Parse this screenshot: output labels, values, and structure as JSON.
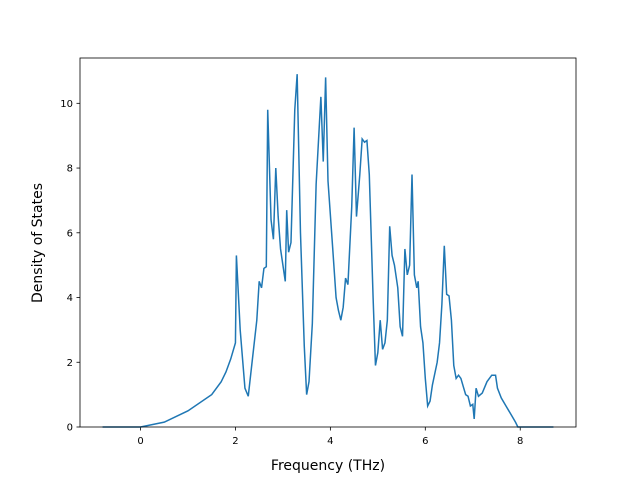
{
  "chart_data": {
    "type": "line",
    "xlabel": "Frequency (THz)",
    "ylabel": "Density of States",
    "x": [
      -0.8,
      0,
      0.5,
      1.0,
      1.5,
      1.7,
      1.8,
      1.9,
      2.0,
      2.02,
      2.1,
      2.15,
      2.2,
      2.27,
      2.35,
      2.45,
      2.5,
      2.55,
      2.6,
      2.65,
      2.68,
      2.75,
      2.8,
      2.85,
      2.9,
      2.95,
      3.05,
      3.08,
      3.12,
      3.17,
      3.25,
      3.3,
      3.37,
      3.45,
      3.5,
      3.55,
      3.62,
      3.7,
      3.8,
      3.85,
      3.9,
      3.95,
      4.05,
      4.12,
      4.17,
      4.22,
      4.27,
      4.32,
      4.37,
      4.45,
      4.5,
      4.55,
      4.62,
      4.67,
      4.72,
      4.77,
      4.82,
      4.9,
      4.95,
      5.0,
      5.05,
      5.1,
      5.15,
      5.2,
      5.25,
      5.3,
      5.35,
      5.42,
      5.47,
      5.52,
      5.57,
      5.62,
      5.67,
      5.72,
      5.77,
      5.82,
      5.85,
      5.9,
      5.95,
      6.0,
      6.05,
      6.1,
      6.15,
      6.25,
      6.3,
      6.35,
      6.4,
      6.45,
      6.5,
      6.55,
      6.6,
      6.65,
      6.7,
      6.75,
      6.8,
      6.85,
      6.9,
      6.95,
      7.0,
      7.03,
      7.07,
      7.12,
      7.2,
      7.3,
      7.4,
      7.48,
      7.52,
      7.6,
      7.7,
      7.8,
      7.9,
      7.95,
      8.7
    ],
    "values": [
      0,
      0,
      0.15,
      0.5,
      1.0,
      1.4,
      1.7,
      2.1,
      2.6,
      5.3,
      3.0,
      2.1,
      1.2,
      0.95,
      2.0,
      3.3,
      4.5,
      4.3,
      4.9,
      4.95,
      9.8,
      6.4,
      5.8,
      8.0,
      6.5,
      5.5,
      4.5,
      6.7,
      5.4,
      5.7,
      9.8,
      10.9,
      6.0,
      2.5,
      1.0,
      1.4,
      3.2,
      7.5,
      10.2,
      8.2,
      10.8,
      7.6,
      5.5,
      4.0,
      3.6,
      3.3,
      3.7,
      4.6,
      4.4,
      6.8,
      9.25,
      6.5,
      7.8,
      8.9,
      8.8,
      8.85,
      7.8,
      4.0,
      1.9,
      2.3,
      3.3,
      2.4,
      2.6,
      3.3,
      6.2,
      5.3,
      5.0,
      4.3,
      3.1,
      2.8,
      5.5,
      4.7,
      5.0,
      7.8,
      4.7,
      4.3,
      4.5,
      3.1,
      2.6,
      1.5,
      0.65,
      0.8,
      1.3,
      2.0,
      2.6,
      3.8,
      5.6,
      4.1,
      4.05,
      3.3,
      1.9,
      1.5,
      1.6,
      1.5,
      1.25,
      1.0,
      0.95,
      0.65,
      0.7,
      0.25,
      1.2,
      0.95,
      1.05,
      1.4,
      1.6,
      1.6,
      1.2,
      0.9,
      0.65,
      0.4,
      0.15,
      0,
      0
    ],
    "color": "#1f77b4",
    "xlim": [
      -1.275,
      9.175
    ],
    "ylim": [
      0,
      11.4
    ],
    "xticks": [
      0,
      2,
      4,
      6,
      8
    ],
    "yticks": [
      0,
      2,
      4,
      6,
      8,
      10
    ]
  }
}
